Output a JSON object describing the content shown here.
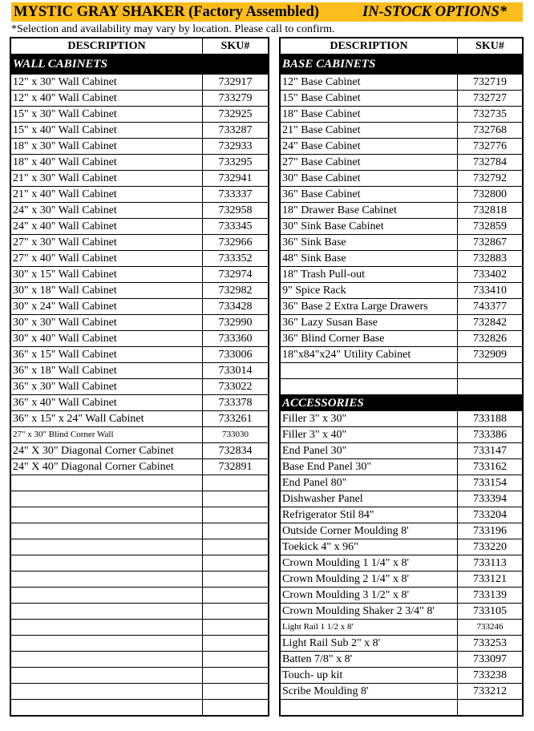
{
  "header": {
    "title": "MYSTIC GRAY SHAKER (Factory Assembled)",
    "subtitle": "IN-STOCK OPTIONS*",
    "note": "*Selection and availability may vary by location. Please call to confirm.",
    "accent_color": "#FCBD1C"
  },
  "columns": {
    "description": "DESCRIPTION",
    "sku": "SKU#"
  },
  "wall": {
    "title": "WALL CABINETS",
    "items": [
      [
        "12\" x 30\" Wall Cabinet",
        "732917"
      ],
      [
        "12\" x 40\" Wall Cabinet",
        "733279"
      ],
      [
        "15\" x 30\" Wall Cabinet",
        "732925"
      ],
      [
        "15\" x 40\" Wall Cabinet",
        "733287"
      ],
      [
        "18\" x 30\" Wall Cabinet",
        "732933"
      ],
      [
        "18\" x 40\" Wall Cabinet",
        "733295"
      ],
      [
        "21\" x 30\" Wall Cabinet",
        "732941"
      ],
      [
        "21\" x 40\" Wall Cabinet",
        "733337"
      ],
      [
        "24\" x 30\" Wall Cabinet",
        "732958"
      ],
      [
        "24\" x 40\" Wall Cabinet",
        "733345"
      ],
      [
        "27\" x 30\" Wall Cabinet",
        "732966"
      ],
      [
        "27\" x 40\" Wall Cabinet",
        "733352"
      ],
      [
        "30\" x 15\" Wall Cabinet",
        "732974"
      ],
      [
        "30\" x 18\" Wall Cabinet",
        "732982"
      ],
      [
        "30\" x 24\" Wall Cabinet",
        "733428"
      ],
      [
        "30\" x 30\" Wall Cabinet",
        "732990"
      ],
      [
        "30\" x 40\" Wall Cabinet",
        "733360"
      ],
      [
        "36\" x 15\" Wall Cabinet",
        "733006"
      ],
      [
        "36\" x 18\" Wall Cabinet",
        "733014"
      ],
      [
        "36\" x 30\" Wall Cabinet",
        "733022"
      ],
      [
        "36\" x 40\" Wall Cabinet",
        "733378"
      ],
      [
        "36\" x 15\" x 24\" Wall Cabinet",
        "733261"
      ],
      [
        "27\" x 30\" Blind Corner Wall",
        "733030"
      ],
      [
        "24\" X 30\" Diagonal Corner Cabinet",
        "732834"
      ],
      [
        "24\" X 40\" Diagonal Corner Cabinet",
        "732891"
      ]
    ]
  },
  "base": {
    "title": "BASE CABINETS",
    "items": [
      [
        "12\" Base Cabinet",
        "732719"
      ],
      [
        "15\" Base Cabinet",
        "732727"
      ],
      [
        "18\" Base Cabinet",
        "732735"
      ],
      [
        "21\" Base Cabinet",
        "732768"
      ],
      [
        "24\" Base Cabinet",
        "732776"
      ],
      [
        "27\" Base Cabinet",
        "732784"
      ],
      [
        "30\" Base Cabinet",
        "732792"
      ],
      [
        "36\" Base Cabinet",
        "732800"
      ],
      [
        "18\" Drawer Base Cabinet",
        "732818"
      ],
      [
        "30\" Sink Base Cabinet",
        "732859"
      ],
      [
        "36\" Sink Base",
        "732867"
      ],
      [
        "48\" Sink Base",
        "732883"
      ],
      [
        "18\" Trash Pull-out",
        "733402"
      ],
      [
        " 9\" Spice Rack",
        "733410"
      ],
      [
        "36\" Base 2 Extra Large Drawers",
        "743377"
      ],
      [
        "36\" Lazy Susan Base",
        "732842"
      ],
      [
        "36\" Blind Corner Base",
        "732826"
      ],
      [
        "18\"x84\"x24\" Utility Cabinet",
        "732909"
      ]
    ]
  },
  "accessories": {
    "title": "ACCESSORIES",
    "items": [
      [
        "Filler 3\" x 30\"",
        "733188"
      ],
      [
        "Filler 3\" x 40\"",
        "733386"
      ],
      [
        "End Panel 30\"",
        "733147"
      ],
      [
        "Base End Panel 30\"",
        "733162"
      ],
      [
        "End Panel 80\"",
        "733154"
      ],
      [
        "Dishwasher Panel",
        "733394"
      ],
      [
        "Refrigerator Stil 84\"",
        "733204"
      ],
      [
        "Outside Corner Moulding 8'",
        "733196"
      ],
      [
        "Toekick 4\" x 96\"",
        "733220"
      ],
      [
        "Crown Moulding 1 1/4\" x 8'",
        "733113"
      ],
      [
        "Crown Moulding  2 1/4\" x 8'",
        "733121"
      ],
      [
        "Crown Moulding 3 1/2\" x 8'",
        "733139"
      ],
      [
        "Crown Moulding Shaker 2 3/4\" 8'",
        "733105"
      ],
      [
        "Light Rail 1 1/2 x 8'",
        "733246"
      ],
      [
        "Light Rail Sub 2\" x 8'",
        "733253"
      ],
      [
        "Batten 7/8\" x 8'",
        "733097"
      ],
      [
        "Touch- up kit",
        "733238"
      ],
      [
        "Scribe Moulding 8'",
        "733212"
      ]
    ]
  }
}
